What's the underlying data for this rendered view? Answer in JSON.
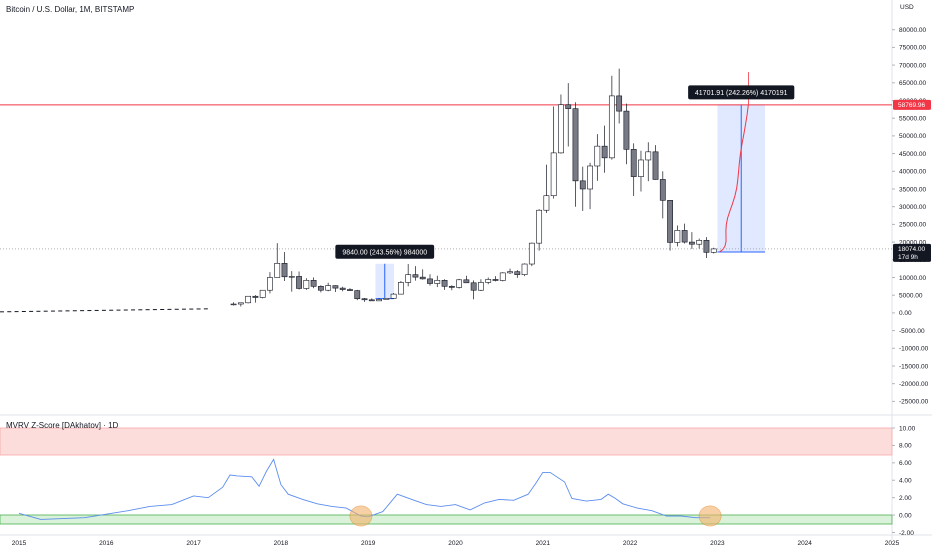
{
  "header": {
    "symbol_title": "Bitcoin / U.S. Dollar, 1M, BITSTAMP",
    "currency": "USD"
  },
  "indicator": {
    "title": "MVRV Z-Score [DAkhatov] · 1D"
  },
  "colors": {
    "up_candle": "#ffffff",
    "down_candle": "#787b86",
    "candle_border": "#131722",
    "resistance_line": "#f23645",
    "projection": "#f23645",
    "measure_fill": "#d6e2ff",
    "measure_line": "#2962ff",
    "mvrv_line": "#5b8def",
    "overbought_zone": "#fddcdc",
    "overbought_border": "#f7a8a8",
    "undervalued_zone": "#d9f2d9",
    "undervalued_border": "#4caf50",
    "highlight_circle": "#f5b26b",
    "price_flag": "#131722",
    "resistance_flag": "#f23645"
  },
  "chart_data": [
    {
      "type": "candlestick",
      "title": "Bitcoin / U.S. Dollar, 1M, BITSTAMP",
      "y_unit": "USD",
      "ylim": [
        -28000,
        85000
      ],
      "y_ticks": [
        80000,
        75000,
        70000,
        65000,
        60000,
        55000,
        50000,
        45000,
        40000,
        35000,
        30000,
        25000,
        20000,
        15000,
        10000,
        5000,
        0,
        -5000,
        -10000,
        -15000,
        -20000,
        -25000
      ],
      "y_tick_labels": [
        "80000.00",
        "75000.00",
        "70000.00",
        "65000.00",
        "60000.00",
        "55000.00",
        "50000.00",
        "45000.00",
        "40000.00",
        "35000.00",
        "30000.00",
        "25000.00",
        "20000.00",
        "15000.00",
        "10000.00",
        "5000.00",
        "0.00",
        "-5000.00",
        "-10000.00",
        "-15000.00",
        "-20000.00",
        "-25000.00"
      ],
      "x_ticks": [
        "2015",
        "2016",
        "2017",
        "2018",
        "2019",
        "2020",
        "2021",
        "2022",
        "2023",
        "2024",
        "2025"
      ],
      "resistance_level": 58769.96,
      "resistance_label": "58769.96",
      "current_price": 18074.0,
      "current_price_label": "18074.00",
      "countdown_label": "17d 9h",
      "candles": [
        {
          "t": "2017-06",
          "o": 2400,
          "h": 3000,
          "l": 2100,
          "c": 2500
        },
        {
          "t": "2017-07",
          "o": 2500,
          "h": 2900,
          "l": 1800,
          "c": 2850
        },
        {
          "t": "2017-08",
          "o": 2850,
          "h": 4700,
          "l": 2700,
          "c": 4700
        },
        {
          "t": "2017-09",
          "o": 4700,
          "h": 5000,
          "l": 2900,
          "c": 4350
        },
        {
          "t": "2017-10",
          "o": 4350,
          "h": 6400,
          "l": 4100,
          "c": 6400
        },
        {
          "t": "2017-11",
          "o": 6400,
          "h": 11500,
          "l": 5500,
          "c": 10000
        },
        {
          "t": "2017-12",
          "o": 10000,
          "h": 19700,
          "l": 10000,
          "c": 14000
        },
        {
          "t": "2018-01",
          "o": 14000,
          "h": 17200,
          "l": 9000,
          "c": 10200
        },
        {
          "t": "2018-02",
          "o": 10200,
          "h": 11800,
          "l": 6000,
          "c": 10300
        },
        {
          "t": "2018-03",
          "o": 10300,
          "h": 11700,
          "l": 6600,
          "c": 6900
        },
        {
          "t": "2018-04",
          "o": 6900,
          "h": 9800,
          "l": 6500,
          "c": 9200
        },
        {
          "t": "2018-05",
          "o": 9200,
          "h": 10000,
          "l": 7000,
          "c": 7500
        },
        {
          "t": "2018-06",
          "o": 7500,
          "h": 7800,
          "l": 5800,
          "c": 6400
        },
        {
          "t": "2018-07",
          "o": 6400,
          "h": 8500,
          "l": 6100,
          "c": 7700
        },
        {
          "t": "2018-08",
          "o": 7700,
          "h": 7800,
          "l": 5900,
          "c": 7000
        },
        {
          "t": "2018-09",
          "o": 7000,
          "h": 7400,
          "l": 6100,
          "c": 6600
        },
        {
          "t": "2018-10",
          "o": 6600,
          "h": 7000,
          "l": 6200,
          "c": 6300
        },
        {
          "t": "2018-11",
          "o": 6300,
          "h": 6500,
          "l": 3600,
          "c": 4000
        },
        {
          "t": "2018-12",
          "o": 4000,
          "h": 4200,
          "l": 3100,
          "c": 3700
        },
        {
          "t": "2019-01",
          "o": 3700,
          "h": 4100,
          "l": 3400,
          "c": 3400
        },
        {
          "t": "2019-02",
          "o": 3400,
          "h": 4200,
          "l": 3400,
          "c": 3800
        },
        {
          "t": "2019-03",
          "o": 3800,
          "h": 4100,
          "l": 3800,
          "c": 4100
        },
        {
          "t": "2019-04",
          "o": 4100,
          "h": 5600,
          "l": 4000,
          "c": 5300
        },
        {
          "t": "2019-05",
          "o": 5300,
          "h": 9000,
          "l": 5300,
          "c": 8600
        },
        {
          "t": "2019-06",
          "o": 8600,
          "h": 13800,
          "l": 7500,
          "c": 10800
        },
        {
          "t": "2019-07",
          "o": 10800,
          "h": 13200,
          "l": 9100,
          "c": 10100
        },
        {
          "t": "2019-08",
          "o": 10100,
          "h": 12300,
          "l": 9400,
          "c": 9600
        },
        {
          "t": "2019-09",
          "o": 9600,
          "h": 10900,
          "l": 7700,
          "c": 8300
        },
        {
          "t": "2019-10",
          "o": 8300,
          "h": 10500,
          "l": 7300,
          "c": 9200
        },
        {
          "t": "2019-11",
          "o": 9200,
          "h": 9500,
          "l": 6500,
          "c": 7500
        },
        {
          "t": "2019-12",
          "o": 7500,
          "h": 7800,
          "l": 6400,
          "c": 7200
        },
        {
          "t": "2020-01",
          "o": 7200,
          "h": 9600,
          "l": 6900,
          "c": 9350
        },
        {
          "t": "2020-02",
          "o": 9350,
          "h": 10500,
          "l": 8500,
          "c": 8500
        },
        {
          "t": "2020-03",
          "o": 8500,
          "h": 9200,
          "l": 3800,
          "c": 6400
        },
        {
          "t": "2020-04",
          "o": 6400,
          "h": 9500,
          "l": 6200,
          "c": 8600
        },
        {
          "t": "2020-05",
          "o": 8600,
          "h": 10000,
          "l": 8100,
          "c": 9450
        },
        {
          "t": "2020-06",
          "o": 9450,
          "h": 10400,
          "l": 8900,
          "c": 9150
        },
        {
          "t": "2020-07",
          "o": 9150,
          "h": 11500,
          "l": 8900,
          "c": 11300
        },
        {
          "t": "2020-08",
          "o": 11300,
          "h": 12500,
          "l": 11000,
          "c": 11650
        },
        {
          "t": "2020-09",
          "o": 11650,
          "h": 12100,
          "l": 9900,
          "c": 10800
        },
        {
          "t": "2020-10",
          "o": 10800,
          "h": 14000,
          "l": 10400,
          "c": 13800
        },
        {
          "t": "2020-11",
          "o": 13800,
          "h": 19900,
          "l": 13200,
          "c": 19700
        },
        {
          "t": "2020-12",
          "o": 19700,
          "h": 29300,
          "l": 17600,
          "c": 29000
        },
        {
          "t": "2021-01",
          "o": 29000,
          "h": 41900,
          "l": 28200,
          "c": 33100
        },
        {
          "t": "2021-02",
          "o": 33100,
          "h": 58300,
          "l": 32300,
          "c": 45200
        },
        {
          "t": "2021-03",
          "o": 45200,
          "h": 61700,
          "l": 45000,
          "c": 58800
        },
        {
          "t": "2021-04",
          "o": 58800,
          "h": 64900,
          "l": 47000,
          "c": 57700
        },
        {
          "t": "2021-05",
          "o": 57700,
          "h": 59500,
          "l": 30000,
          "c": 37300
        },
        {
          "t": "2021-06",
          "o": 37300,
          "h": 41300,
          "l": 28800,
          "c": 35000
        },
        {
          "t": "2021-07",
          "o": 35000,
          "h": 42400,
          "l": 29300,
          "c": 41500
        },
        {
          "t": "2021-08",
          "o": 41500,
          "h": 50500,
          "l": 37300,
          "c": 47100
        },
        {
          "t": "2021-09",
          "o": 47100,
          "h": 52900,
          "l": 39600,
          "c": 43800
        },
        {
          "t": "2021-10",
          "o": 43800,
          "h": 67000,
          "l": 43300,
          "c": 61300
        },
        {
          "t": "2021-11",
          "o": 61300,
          "h": 69000,
          "l": 53500,
          "c": 57000
        },
        {
          "t": "2021-12",
          "o": 57000,
          "h": 59100,
          "l": 42000,
          "c": 46200
        },
        {
          "t": "2022-01",
          "o": 46200,
          "h": 47900,
          "l": 33000,
          "c": 38500
        },
        {
          "t": "2022-02",
          "o": 38500,
          "h": 45800,
          "l": 34300,
          "c": 43200
        },
        {
          "t": "2022-03",
          "o": 43200,
          "h": 48200,
          "l": 37200,
          "c": 45500
        },
        {
          "t": "2022-04",
          "o": 45500,
          "h": 47400,
          "l": 37600,
          "c": 37700
        },
        {
          "t": "2022-05",
          "o": 37700,
          "h": 40000,
          "l": 26700,
          "c": 31800
        },
        {
          "t": "2022-06",
          "o": 31800,
          "h": 31900,
          "l": 17600,
          "c": 19900
        },
        {
          "t": "2022-07",
          "o": 19900,
          "h": 24700,
          "l": 18800,
          "c": 23300
        },
        {
          "t": "2022-08",
          "o": 23300,
          "h": 25200,
          "l": 19600,
          "c": 20000
        },
        {
          "t": "2022-09",
          "o": 20000,
          "h": 22800,
          "l": 18100,
          "c": 19400
        },
        {
          "t": "2022-10",
          "o": 19400,
          "h": 21000,
          "l": 18200,
          "c": 20500
        },
        {
          "t": "2022-11",
          "o": 20500,
          "h": 21400,
          "l": 15500,
          "c": 17100
        },
        {
          "t": "2022-12",
          "o": 17100,
          "h": 18400,
          "l": 16800,
          "c": 18074
        }
      ],
      "annotations": [
        {
          "kind": "price_range",
          "label": "9840.00 (243.56%) 984000",
          "from_t": "2019-02",
          "to_t": "2019-04",
          "low": 4040,
          "high": 13880
        },
        {
          "kind": "price_range",
          "label": "41701.91 (242.26%) 4170191",
          "from_t": "2023-01",
          "to_t": "2023-07",
          "low": 17213,
          "high": 58915
        }
      ]
    },
    {
      "type": "line",
      "title": "MVRV Z-Score [DAkhatov] · 1D",
      "ylim": [
        -2.3,
        11
      ],
      "y_ticks": [
        10,
        8,
        6,
        4,
        2,
        0,
        -2
      ],
      "y_tick_labels": [
        "10.00",
        "8.00",
        "6.00",
        "4.00",
        "2.00",
        "0.00",
        "-2.00"
      ],
      "zones": [
        {
          "name": "overbought",
          "from": 7,
          "to": 11
        },
        {
          "name": "undervalued",
          "from": -1.0,
          "to": 0.1
        }
      ],
      "x": [
        "2015-01",
        "2015-04",
        "2015-07",
        "2015-10",
        "2016-01",
        "2016-04",
        "2016-07",
        "2016-10",
        "2017-01",
        "2017-03",
        "2017-05",
        "2017-06",
        "2017-07",
        "2017-09",
        "2017-10",
        "2017-11",
        "2017-12",
        "2018-01",
        "2018-02",
        "2018-04",
        "2018-06",
        "2018-08",
        "2018-10",
        "2018-12",
        "2019-01",
        "2019-03",
        "2019-05",
        "2019-07",
        "2019-09",
        "2019-11",
        "2020-01",
        "2020-03",
        "2020-05",
        "2020-07",
        "2020-09",
        "2020-11",
        "2020-12",
        "2021-01",
        "2021-02",
        "2021-04",
        "2021-05",
        "2021-07",
        "2021-09",
        "2021-10",
        "2021-11",
        "2021-12",
        "2022-02",
        "2022-04",
        "2022-06",
        "2022-08",
        "2022-10",
        "2022-12"
      ],
      "values": [
        0.2,
        -0.5,
        -0.4,
        -0.3,
        0.1,
        0.5,
        1.0,
        1.2,
        2.2,
        2.0,
        3.2,
        4.6,
        4.5,
        4.4,
        3.3,
        5.0,
        6.4,
        3.5,
        2.4,
        1.8,
        1.3,
        1.0,
        0.8,
        -0.1,
        -0.2,
        0.4,
        2.4,
        1.8,
        1.2,
        1.0,
        1.2,
        0.6,
        1.4,
        1.8,
        1.7,
        2.4,
        3.6,
        4.9,
        4.9,
        3.8,
        1.9,
        1.6,
        1.8,
        2.4,
        1.9,
        1.3,
        0.8,
        0.5,
        -0.1,
        -0.1,
        -0.3,
        -0.3
      ],
      "highlights": [
        "2018-12",
        "2022-12"
      ]
    }
  ]
}
